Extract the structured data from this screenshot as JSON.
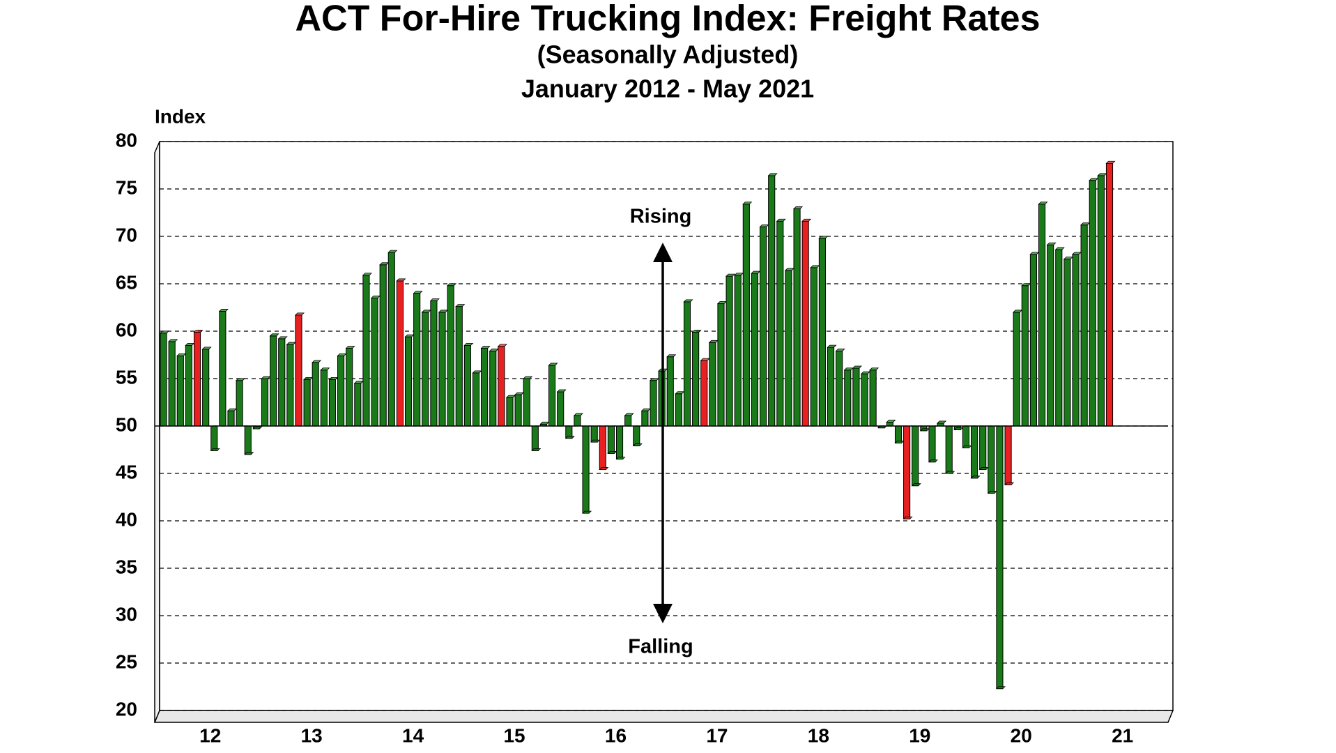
{
  "chart_data": {
    "type": "bar",
    "title": "ACT For-Hire Trucking Index: Freight Rates",
    "subtitle": "(Seasonally Adjusted)",
    "period": "January 2012 - May 2021",
    "y_label": "Index",
    "annotations": [
      "Rising",
      "Falling"
    ],
    "x_labels": [
      "12",
      "13",
      "14",
      "15",
      "16",
      "17",
      "18",
      "19",
      "20",
      "21"
    ],
    "base": 50,
    "values": [
      59.8,
      58.9,
      57.4,
      58.5,
      59.9,
      58.1,
      47.4,
      62.1,
      51.6,
      54.8,
      47.0,
      49.7,
      55.0,
      59.5,
      59.2,
      58.6,
      61.7,
      54.9,
      56.7,
      55.9,
      54.9,
      57.4,
      58.2,
      54.5,
      65.9,
      63.5,
      67.0,
      68.3,
      65.3,
      59.4,
      64.0,
      62.0,
      63.2,
      62.0,
      64.8,
      62.6,
      58.5,
      55.6,
      58.2,
      57.9,
      58.4,
      53.0,
      53.3,
      55.0,
      47.4,
      50.2,
      56.4,
      53.6,
      48.7,
      51.1,
      40.8,
      48.3,
      45.4,
      47.1,
      46.5,
      51.1,
      47.9,
      51.6,
      54.8,
      55.8,
      57.3,
      53.4,
      63.1,
      59.9,
      56.9,
      58.8,
      62.9,
      65.8,
      65.9,
      73.4,
      66.1,
      71.0,
      76.4,
      71.6,
      66.4,
      72.9,
      71.6,
      66.7,
      69.8,
      58.3,
      57.9,
      55.9,
      56.1,
      55.5,
      55.9,
      49.8,
      50.4,
      48.2,
      40.2,
      43.7,
      49.5,
      46.2,
      50.3,
      45.0,
      49.6,
      47.7,
      44.5,
      45.4,
      42.9,
      22.3,
      43.8,
      62.0,
      64.8,
      68.1,
      73.4,
      69.1,
      68.6,
      67.6,
      68.1,
      71.2,
      75.9,
      76.4,
      77.7
    ],
    "colors": [
      "#1a7a1a",
      "#1a7a1a",
      "#1a7a1a",
      "#1a7a1a",
      "#e82020",
      "#1a7a1a",
      "#1a7a1a",
      "#1a7a1a",
      "#1a7a1a",
      "#1a7a1a",
      "#1a7a1a",
      "#1a7a1a",
      "#1a7a1a",
      "#1a7a1a",
      "#1a7a1a",
      "#1a7a1a",
      "#e82020",
      "#1a7a1a",
      "#1a7a1a",
      "#1a7a1a",
      "#1a7a1a",
      "#1a7a1a",
      "#1a7a1a",
      "#1a7a1a",
      "#1a7a1a",
      "#1a7a1a",
      "#1a7a1a",
      "#1a7a1a",
      "#e82020",
      "#1a7a1a",
      "#1a7a1a",
      "#1a7a1a",
      "#1a7a1a",
      "#1a7a1a",
      "#1a7a1a",
      "#1a7a1a",
      "#1a7a1a",
      "#1a7a1a",
      "#1a7a1a",
      "#1a7a1a",
      "#e82020",
      "#1a7a1a",
      "#1a7a1a",
      "#1a7a1a",
      "#1a7a1a",
      "#1a7a1a",
      "#1a7a1a",
      "#1a7a1a",
      "#1a7a1a",
      "#1a7a1a",
      "#1a7a1a",
      "#1a7a1a",
      "#e82020",
      "#1a7a1a",
      "#1a7a1a",
      "#1a7a1a",
      "#1a7a1a",
      "#1a7a1a",
      "#1a7a1a",
      "#1a7a1a",
      "#1a7a1a",
      "#1a7a1a",
      "#1a7a1a",
      "#1a7a1a",
      "#e82020",
      "#1a7a1a",
      "#1a7a1a",
      "#1a7a1a",
      "#1a7a1a",
      "#1a7a1a",
      "#1a7a1a",
      "#1a7a1a",
      "#1a7a1a",
      "#1a7a1a",
      "#1a7a1a",
      "#1a7a1a",
      "#e82020",
      "#1a7a1a",
      "#1a7a1a",
      "#1a7a1a",
      "#1a7a1a",
      "#1a7a1a",
      "#1a7a1a",
      "#1a7a1a",
      "#1a7a1a",
      "#1a7a1a",
      "#1a7a1a",
      "#1a7a1a",
      "#e82020",
      "#1a7a1a",
      "#1a7a1a",
      "#1a7a1a",
      "#1a7a1a",
      "#1a7a1a",
      "#1a7a1a",
      "#1a7a1a",
      "#1a7a1a",
      "#1a7a1a",
      "#1a7a1a",
      "#1a7a1a",
      "#e82020",
      "#1a7a1a",
      "#1a7a1a",
      "#1a7a1a",
      "#1a7a1a",
      "#1a7a1a",
      "#1a7a1a",
      "#1a7a1a",
      "#1a7a1a",
      "#1a7a1a",
      "#1a7a1a",
      "#1a7a1a",
      "#e82020"
    ],
    "ylim": [
      20,
      80
    ],
    "yticks": [
      20,
      25,
      30,
      35,
      40,
      45,
      50,
      55,
      60,
      65,
      70,
      75,
      80
    ],
    "grid": true
  }
}
